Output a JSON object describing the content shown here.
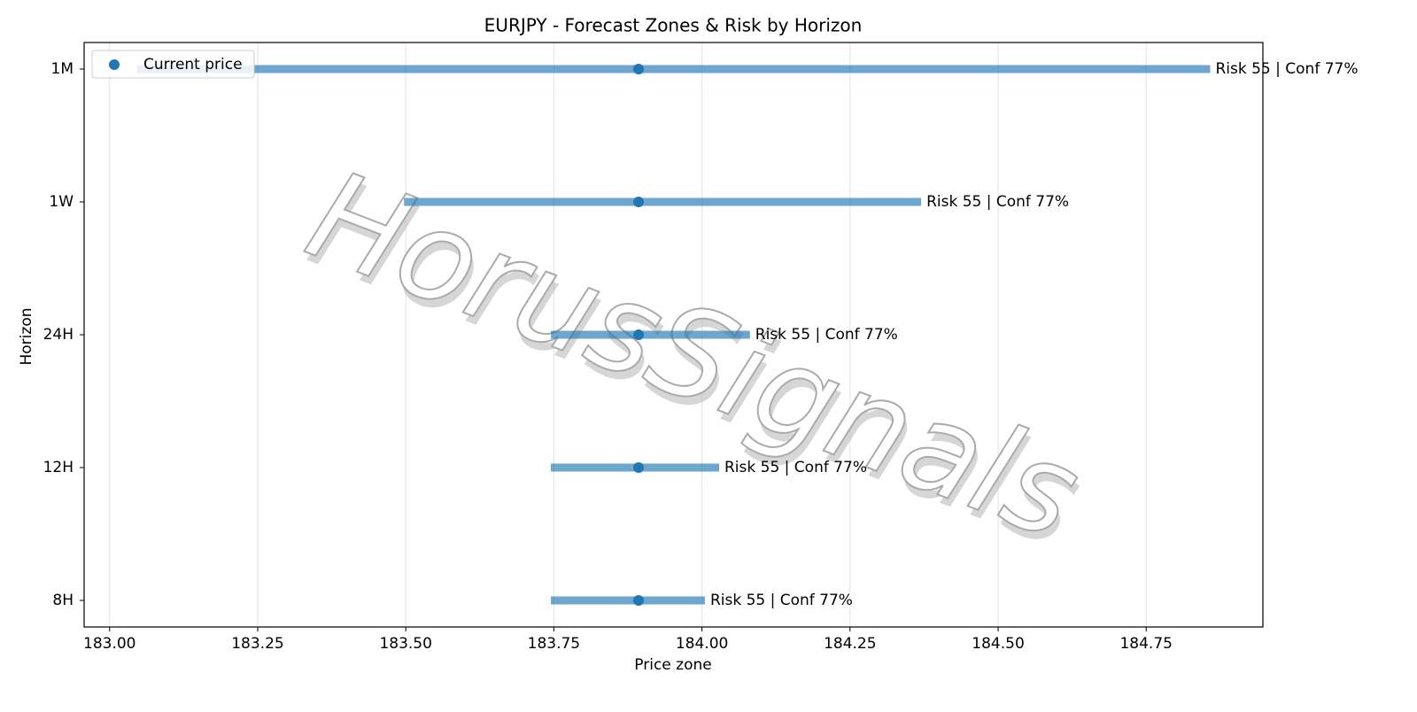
{
  "chart_data": {
    "type": "range",
    "title": "EURJPY - Forecast Zones & Risk by Horizon",
    "x_label": "Price zone",
    "y_label": "Horizon",
    "watermark": "HorusSignals",
    "categories": [
      "8H",
      "12H",
      "24H",
      "1W",
      "1M"
    ],
    "low": [
      183.745,
      183.745,
      183.745,
      183.497,
      183.046
    ],
    "high": [
      184.005,
      184.029,
      184.081,
      184.37,
      184.858
    ],
    "zone_color": "#1f77b4",
    "current_price": {
      "name": "Current price",
      "color": "#1f77b4",
      "values": [
        183.893,
        183.893,
        183.893,
        183.893,
        183.893
      ]
    },
    "annotations": [
      "Risk 55 | Conf 77%",
      "Risk 55 | Conf 77%",
      "Risk 55 | Conf 77%",
      "Risk 55 | Conf 77%",
      "Risk 55 | Conf 77%"
    ],
    "xlim": [
      182.957,
      184.947
    ],
    "xticks": [
      {
        "value": 183,
        "label": "183.00"
      },
      183.25,
      {
        "value": 183.5,
        "label": "183.50"
      },
      183.75,
      {
        "value": 184,
        "label": "184.00"
      },
      184.25,
      {
        "value": 184.5,
        "label": "184.50"
      },
      184.75
    ],
    "grid": true,
    "legend": "upper-left"
  }
}
